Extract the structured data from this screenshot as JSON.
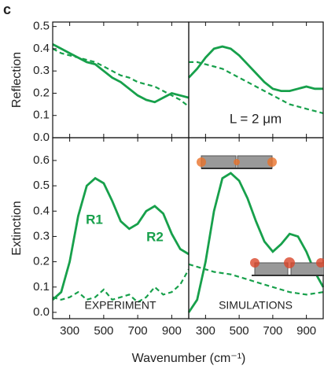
{
  "panel_label": "c",
  "xlabel": "Wavenumber (cm⁻¹)",
  "chart_data": [
    {
      "type": "line",
      "ylabel": "Reflection",
      "x": [
        200,
        250,
        300,
        350,
        400,
        450,
        500,
        550,
        600,
        650,
        700,
        750,
        800,
        850,
        900,
        950,
        1000
      ],
      "series": [
        {
          "color": "#17a04b",
          "dash": false,
          "values": [
            0.42,
            0.4,
            0.38,
            0.36,
            0.34,
            0.33,
            0.3,
            0.27,
            0.25,
            0.22,
            0.19,
            0.17,
            0.16,
            0.18,
            0.2,
            0.19,
            0.18
          ]
        },
        {
          "color": "#17a04b",
          "dash": true,
          "values": [
            0.4,
            0.38,
            0.37,
            0.36,
            0.35,
            0.34,
            0.32,
            0.3,
            0.28,
            0.27,
            0.25,
            0.24,
            0.23,
            0.21,
            0.19,
            0.17,
            0.14
          ]
        }
      ],
      "xlim": [
        200,
        1000
      ],
      "ylim": [
        0,
        0.52
      ],
      "xticks": [
        300,
        500,
        700,
        900
      ],
      "yticks": [
        {
          "value": 0,
          "label": "0.0"
        },
        0.1,
        0.2,
        0.3,
        0.4,
        0.5
      ]
    },
    {
      "type": "line",
      "annotations": [
        "L = 2 μm"
      ],
      "x": [
        200,
        250,
        300,
        350,
        400,
        450,
        500,
        550,
        600,
        650,
        700,
        750,
        800,
        850,
        900,
        950,
        1000
      ],
      "series": [
        {
          "color": "#17a04b",
          "dash": false,
          "values": [
            0.27,
            0.31,
            0.36,
            0.4,
            0.41,
            0.4,
            0.37,
            0.33,
            0.29,
            0.25,
            0.22,
            0.21,
            0.21,
            0.22,
            0.23,
            0.22,
            0.22
          ]
        },
        {
          "color": "#17a04b",
          "dash": true,
          "values": [
            0.34,
            0.34,
            0.33,
            0.32,
            0.31,
            0.29,
            0.27,
            0.25,
            0.23,
            0.21,
            0.19,
            0.17,
            0.15,
            0.14,
            0.13,
            0.12,
            0.11
          ]
        }
      ],
      "xlim": [
        200,
        1000
      ],
      "ylim": [
        0,
        0.52
      ],
      "xticks": [
        300,
        500,
        700,
        900
      ]
    },
    {
      "type": "line",
      "ylabel": "Extinction",
      "annotations": [
        "R1",
        "R2",
        "EXPERIMENT"
      ],
      "x": [
        200,
        250,
        300,
        350,
        400,
        450,
        500,
        550,
        600,
        650,
        700,
        750,
        800,
        850,
        900,
        950,
        1000
      ],
      "series": [
        {
          "color": "#17a04b",
          "dash": false,
          "values": [
            0.05,
            0.08,
            0.2,
            0.38,
            0.5,
            0.53,
            0.51,
            0.44,
            0.36,
            0.33,
            0.35,
            0.4,
            0.42,
            0.39,
            0.31,
            0.25,
            0.23
          ]
        },
        {
          "color": "#17a04b",
          "dash": true,
          "values": [
            0.06,
            0.05,
            0.06,
            0.08,
            0.05,
            0.06,
            0.09,
            0.05,
            0.06,
            0.07,
            0.04,
            0.06,
            0.1,
            0.07,
            0.08,
            0.11,
            0.17
          ]
        }
      ],
      "xlim": [
        200,
        1000
      ],
      "ylim": [
        -0.025,
        0.69
      ],
      "xticks": [
        300,
        500,
        700,
        900
      ],
      "yticks": [
        {
          "value": 0,
          "label": "0.0"
        },
        0.1,
        0.2,
        0.3,
        0.4,
        0.5,
        0.6
      ]
    },
    {
      "type": "line",
      "annotations": [
        "SIMULATIONS"
      ],
      "x": [
        200,
        250,
        300,
        350,
        400,
        450,
        500,
        550,
        600,
        650,
        700,
        750,
        800,
        850,
        900,
        950,
        1000
      ],
      "series": [
        {
          "color": "#17a04b",
          "dash": false,
          "values": [
            0.0,
            0.05,
            0.2,
            0.4,
            0.53,
            0.55,
            0.52,
            0.45,
            0.36,
            0.28,
            0.24,
            0.27,
            0.31,
            0.3,
            0.24,
            0.16,
            0.1
          ]
        },
        {
          "color": "#17a04b",
          "dash": true,
          "values": [
            0.19,
            0.18,
            0.17,
            0.16,
            0.155,
            0.15,
            0.14,
            0.13,
            0.12,
            0.11,
            0.1,
            0.09,
            0.08,
            0.075,
            0.07,
            0.075,
            0.08
          ]
        }
      ],
      "xlim": [
        200,
        1000
      ],
      "ylim": [
        -0.025,
        0.69
      ],
      "xticks": [
        300,
        500,
        700,
        900
      ]
    }
  ]
}
